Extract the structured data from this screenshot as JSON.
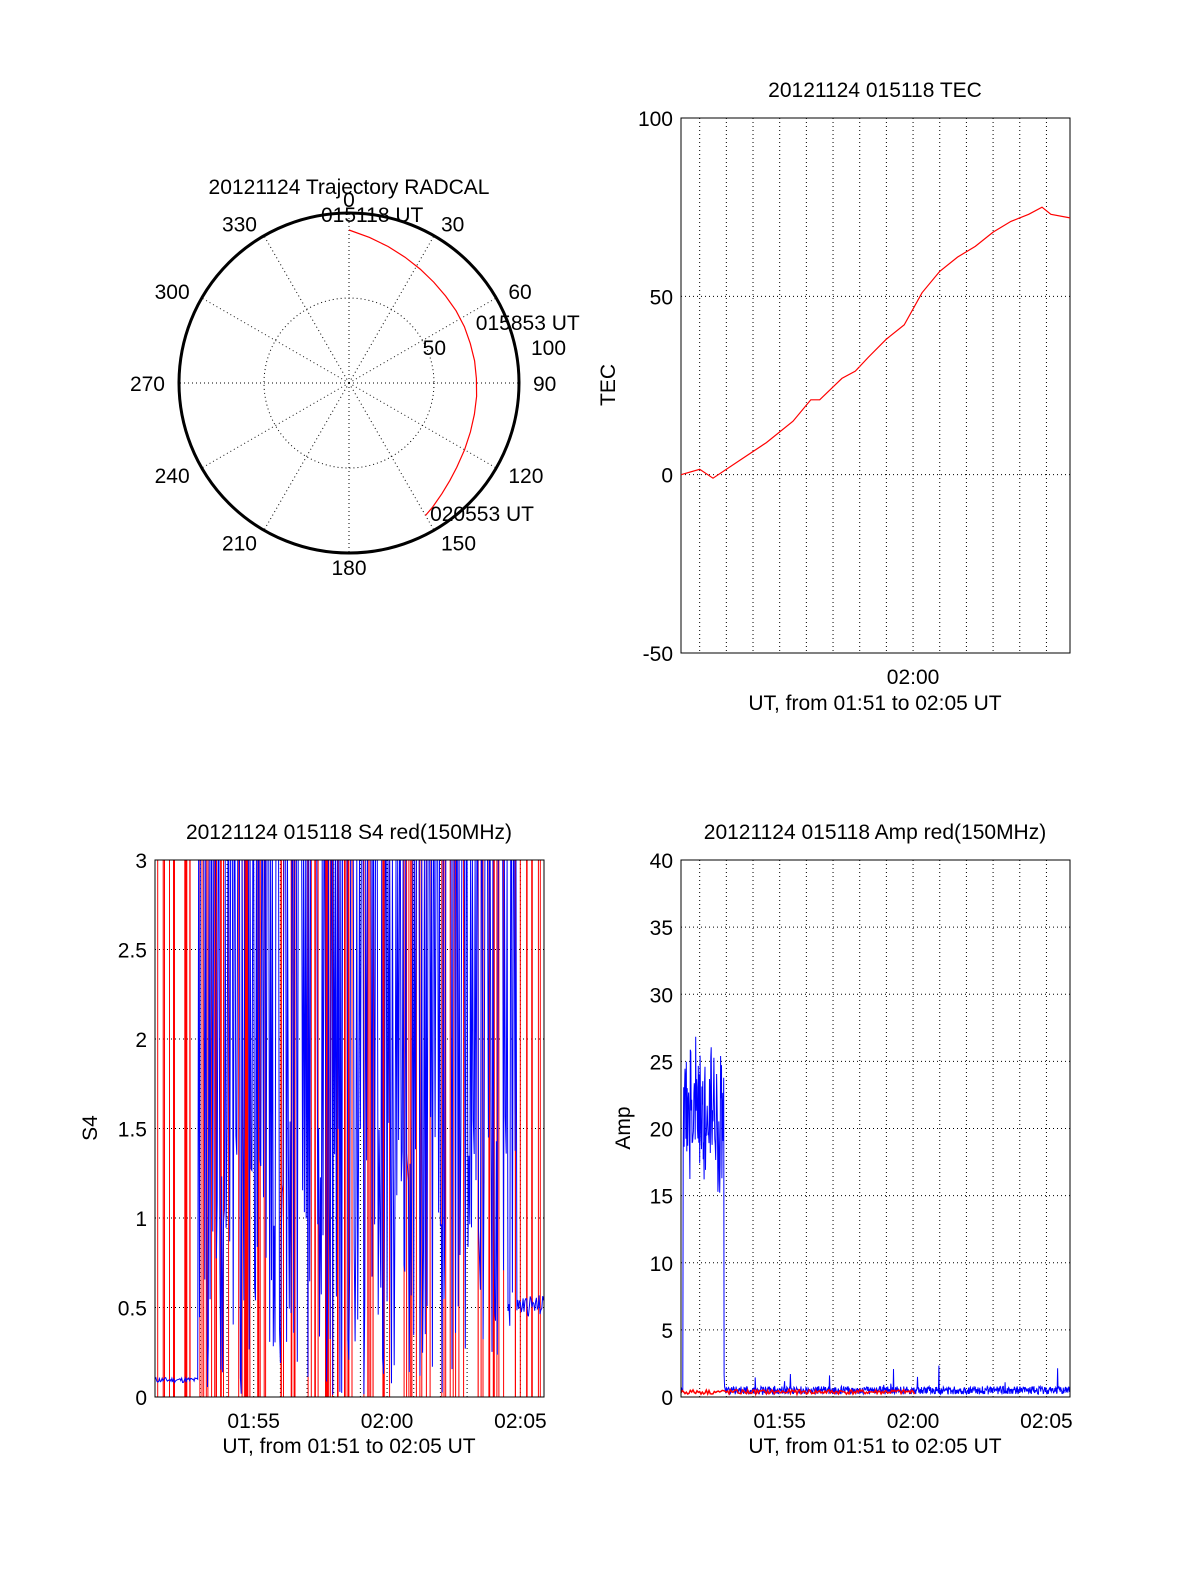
{
  "chart_data": [
    {
      "type": "polar",
      "title": "20121124 Trajectory RADCAL",
      "angle_labels": [
        "0",
        "30",
        "60",
        "90",
        "120",
        "150",
        "180",
        "210",
        "240",
        "270",
        "300",
        "330"
      ],
      "radial_labels": [
        "50",
        "100"
      ],
      "radial_range": [
        0,
        100
      ],
      "track": {
        "color": "#ff0000",
        "azimuth": [
          0,
          8,
          16,
          24,
          32,
          40,
          48,
          56,
          64,
          72,
          80,
          88,
          96,
          104,
          112,
          120,
          128,
          134,
          140,
          146,
          150
        ],
        "radius": [
          90,
          86.5,
          83.5,
          81,
          79,
          77.5,
          76.5,
          76,
          75.5,
          75,
          75,
          75,
          75.5,
          76,
          77,
          78.5,
          80.5,
          82.5,
          85,
          88,
          90
        ]
      },
      "annotations": [
        {
          "text": "015118 UT",
          "azimuth": 0,
          "radius": 90
        },
        {
          "text": "015853 UT",
          "azimuth": 73,
          "radius": 78
        },
        {
          "text": "020553 UT",
          "azimuth": 148,
          "radius": 90
        }
      ],
      "grid": true
    },
    {
      "type": "line",
      "title": "20121124 015118 TEC",
      "ylabel": "TEC",
      "xlabel": "UT, from 01:51 to 02:05 UT",
      "xlim": [
        "01:51:18",
        "02:05:53"
      ],
      "ylim": [
        -50,
        100
      ],
      "yticks": [
        "100",
        "50",
        "0",
        "-50"
      ],
      "xtick_labels": [
        {
          "t": "02:00",
          "label": "02:00"
        }
      ],
      "grid": true,
      "series": [
        {
          "color": "#ff0000",
          "x": [
            "01:51:18",
            "01:52:00",
            "01:52:30",
            "01:53:30",
            "01:54:30",
            "01:55:30",
            "01:56:10",
            "01:56:30",
            "01:57:20",
            "01:57:50",
            "01:58:20",
            "01:59:00",
            "01:59:40",
            "02:00:20",
            "02:01:00",
            "02:01:40",
            "02:02:20",
            "02:03:00",
            "02:03:40",
            "02:04:20",
            "02:04:50",
            "02:05:10",
            "02:05:53"
          ],
          "values": [
            0,
            1.5,
            -1,
            4,
            9,
            15,
            21,
            21,
            27,
            29,
            33,
            38,
            42,
            51,
            57,
            61,
            64,
            68,
            71,
            73,
            75,
            73,
            72
          ]
        }
      ]
    },
    {
      "type": "line",
      "title": "20121124 015118 S4 red(150MHz)",
      "ylabel": "S4",
      "xlabel": "UT, from 01:51 to 02:05 UT",
      "xlim": [
        "01:51:18",
        "02:05:53"
      ],
      "ylim": [
        0,
        3
      ],
      "yticks": [
        "3",
        "2.5",
        "2",
        "1.5",
        "1",
        "0.5",
        "0"
      ],
      "xtick_labels": [
        {
          "t": "01:55",
          "label": "01:55"
        },
        {
          "t": "02:00",
          "label": "02:00"
        },
        {
          "t": "02:05",
          "label": "02:05"
        }
      ],
      "grid": true,
      "series": [
        {
          "name": "red",
          "color": "#ff0000"
        },
        {
          "name": "blue",
          "color": "#0000ff"
        }
      ]
    },
    {
      "type": "line",
      "title": "20121124 015118 Amp red(150MHz)",
      "ylabel": "Amp",
      "xlabel": "UT, from 01:51 to 02:05 UT",
      "xlim": [
        "01:51:18",
        "02:05:53"
      ],
      "ylim": [
        0,
        40
      ],
      "yticks": [
        "40",
        "35",
        "30",
        "25",
        "20",
        "15",
        "10",
        "5",
        "0"
      ],
      "xtick_labels": [
        {
          "t": "01:55",
          "label": "01:55"
        },
        {
          "t": "02:00",
          "label": "02:00"
        },
        {
          "t": "02:05",
          "label": "02:05"
        }
      ],
      "grid": true,
      "series": [
        {
          "name": "blue",
          "color": "#0000ff"
        },
        {
          "name": "red",
          "color": "#ff0000"
        }
      ]
    }
  ]
}
